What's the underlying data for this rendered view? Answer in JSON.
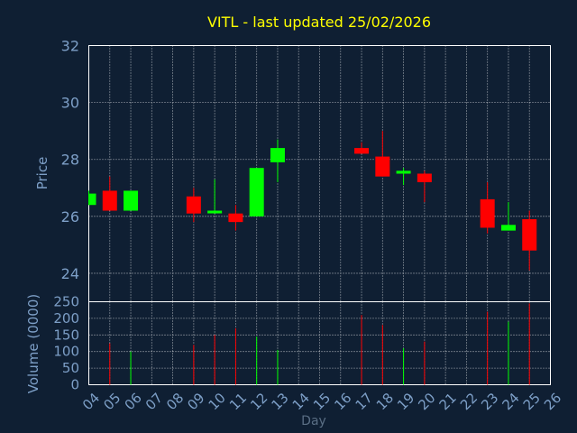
{
  "chart_data": {
    "type": "candlestick",
    "title": "VITL - last updated 25/02/2026",
    "xlabel": "Day",
    "colors": {
      "background": "#0f1f33",
      "plot_background": "#0f1f33",
      "up": "#00ff00",
      "down": "#ff0000",
      "title": "#ffff00",
      "axis_text": "#7d9fc7",
      "grid": "#ffffff"
    },
    "x_ticks": [
      "04",
      "05",
      "06",
      "07",
      "08",
      "09",
      "10",
      "11",
      "12",
      "13",
      "14",
      "15",
      "16",
      "17",
      "18",
      "19",
      "20",
      "21",
      "22",
      "23",
      "24",
      "25",
      "26"
    ],
    "price_panel": {
      "ylabel": "Price",
      "ylim": [
        23,
        32
      ],
      "yticks": [
        "24",
        "26",
        "28",
        "30",
        "32"
      ],
      "candles": [
        {
          "day": "04",
          "open": 26.4,
          "high": 26.9,
          "low": 26.4,
          "close": 26.8
        },
        {
          "day": "05",
          "open": 26.9,
          "high": 27.4,
          "low": 26.2,
          "close": 26.2
        },
        {
          "day": "06",
          "open": 26.2,
          "high": 26.9,
          "low": 26.2,
          "close": 26.9
        },
        {
          "day": "09",
          "open": 26.7,
          "high": 27.0,
          "low": 25.8,
          "close": 26.1
        },
        {
          "day": "10",
          "open": 26.2,
          "high": 27.3,
          "low": 26.1,
          "close": 26.2
        },
        {
          "day": "11",
          "open": 26.1,
          "high": 26.4,
          "low": 25.5,
          "close": 25.8
        },
        {
          "day": "12",
          "open": 26.0,
          "high": 27.7,
          "low": 26.0,
          "close": 27.7
        },
        {
          "day": "13",
          "open": 27.9,
          "high": 28.7,
          "low": 27.2,
          "close": 28.4
        },
        {
          "day": "17",
          "open": 28.4,
          "high": 28.6,
          "low": 28.2,
          "close": 28.2
        },
        {
          "day": "18",
          "open": 28.1,
          "high": 29.0,
          "low": 27.4,
          "close": 27.4
        },
        {
          "day": "19",
          "open": 27.5,
          "high": 27.7,
          "low": 27.1,
          "close": 27.6
        },
        {
          "day": "20",
          "open": 27.5,
          "high": 27.6,
          "low": 26.5,
          "close": 27.2
        },
        {
          "day": "23",
          "open": 26.6,
          "high": 27.2,
          "low": 25.4,
          "close": 25.6
        },
        {
          "day": "24",
          "open": 25.5,
          "high": 26.5,
          "low": 25.5,
          "close": 25.7
        },
        {
          "day": "25",
          "open": 25.9,
          "high": 26.2,
          "low": 24.1,
          "close": 24.8
        }
      ]
    },
    "volume_panel": {
      "ylabel": "Volume (0000)",
      "ylim": [
        0,
        250
      ],
      "yticks": [
        "0",
        "50",
        "100",
        "150",
        "200",
        "250"
      ],
      "bars": [
        {
          "day": "05",
          "value": 125,
          "direction": "down"
        },
        {
          "day": "06",
          "value": 100,
          "direction": "up"
        },
        {
          "day": "09",
          "value": 120,
          "direction": "down"
        },
        {
          "day": "10",
          "value": 150,
          "direction": "down"
        },
        {
          "day": "11",
          "value": 170,
          "direction": "down"
        },
        {
          "day": "12",
          "value": 145,
          "direction": "up"
        },
        {
          "day": "13",
          "value": 105,
          "direction": "up"
        },
        {
          "day": "17",
          "value": 210,
          "direction": "down"
        },
        {
          "day": "18",
          "value": 180,
          "direction": "down"
        },
        {
          "day": "19",
          "value": 110,
          "direction": "up"
        },
        {
          "day": "20",
          "value": 130,
          "direction": "down"
        },
        {
          "day": "23",
          "value": 220,
          "direction": "down"
        },
        {
          "day": "24",
          "value": 190,
          "direction": "up"
        },
        {
          "day": "25",
          "value": 245,
          "direction": "down"
        }
      ]
    }
  }
}
